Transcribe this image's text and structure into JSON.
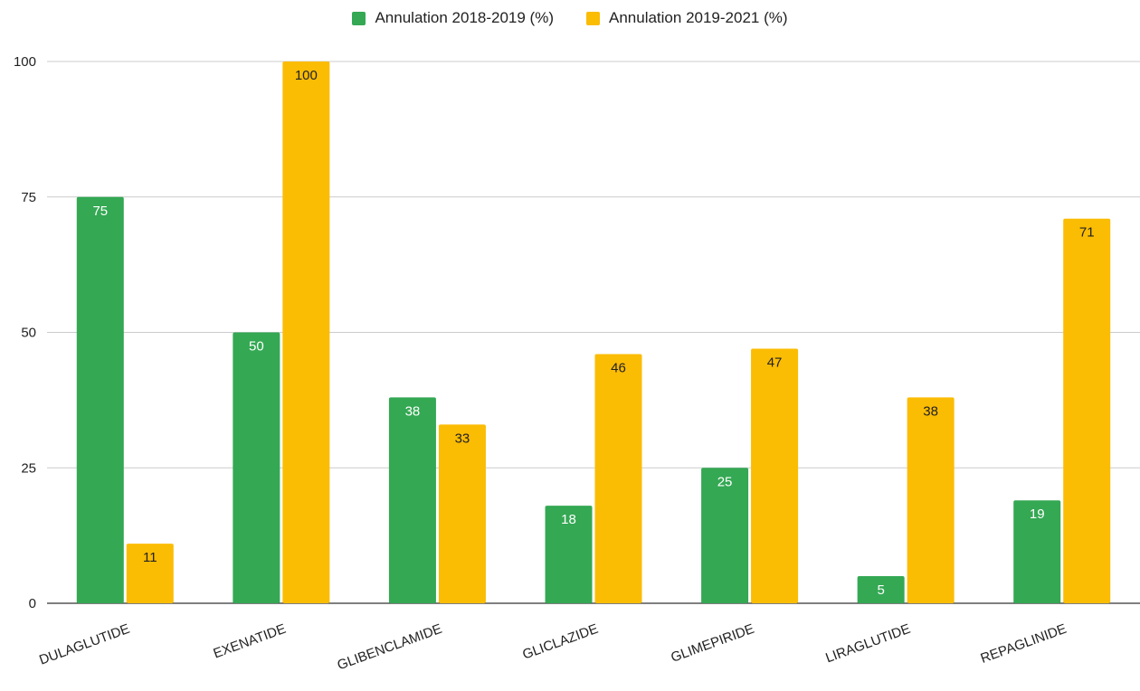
{
  "chart_data": {
    "type": "bar",
    "categories": [
      "DULAGLUTIDE",
      "EXENATIDE",
      "GLIBENCLAMIDE",
      "GLICLAZIDE",
      "GLIMEPIRIDE",
      "LIRAGLUTIDE",
      "REPAGLINIDE"
    ],
    "series": [
      {
        "name": "Annulation 2018-2019 (%)",
        "color": "#34a853",
        "label_color": "#ffffff",
        "values": [
          75,
          50,
          38,
          18,
          25,
          5,
          19
        ]
      },
      {
        "name": "Annulation 2019-2021 (%)",
        "color": "#fbbc04",
        "label_color": "#222222",
        "values": [
          11,
          100,
          33,
          46,
          47,
          38,
          71
        ]
      }
    ],
    "yticks": [
      "0",
      "25",
      "50",
      "75",
      "100"
    ],
    "ylim": [
      0,
      100
    ],
    "grid": true,
    "legend_position": "top",
    "title": "",
    "xlabel": "",
    "ylabel": ""
  }
}
